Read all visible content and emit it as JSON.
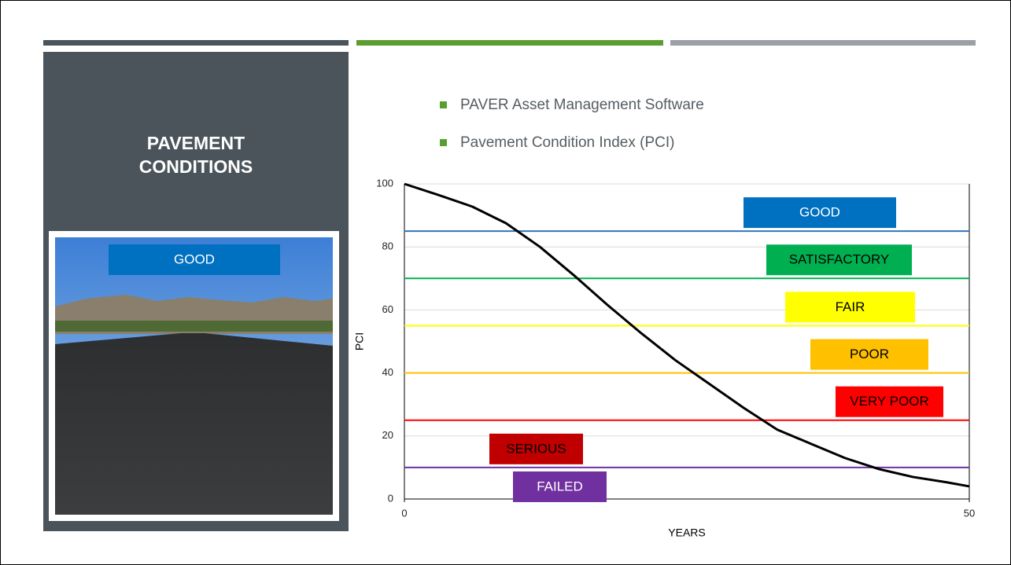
{
  "slide": {
    "title_lines": [
      "PAVEMENT",
      "CONDITIONS"
    ],
    "photo_label": "GOOD",
    "bullets": [
      "PAVER Asset Management Software",
      "Pavement Condition Index (PCI)"
    ]
  },
  "chart_data": {
    "type": "line",
    "xlabel": "YEARS",
    "ylabel": "PCI",
    "x": [
      0,
      3,
      6,
      9,
      12,
      15,
      18,
      21,
      24,
      27,
      30,
      33,
      36,
      39,
      42,
      45,
      48,
      50
    ],
    "series": [
      {
        "color": "#000000",
        "values": [
          100,
          96.5,
          92.8,
          87.5,
          80,
          71,
          61.5,
          52.5,
          44,
          36.5,
          29,
          22,
          17.5,
          13,
          9.5,
          7,
          5.3,
          4
        ]
      }
    ],
    "thresholds": [
      {
        "value": 85,
        "color": "#2e75b6"
      },
      {
        "value": 70,
        "color": "#00b050"
      },
      {
        "value": 55,
        "color": "#ffff00"
      },
      {
        "value": 40,
        "color": "#ffc000"
      },
      {
        "value": 25,
        "color": "#ff0000"
      },
      {
        "value": 10,
        "color": "#7030a0"
      }
    ],
    "bands": [
      {
        "name": "GOOD",
        "color": "#0070c0"
      },
      {
        "name": "SATISFACTORY",
        "color": "#00b050"
      },
      {
        "name": "FAIR",
        "color": "#ffff00"
      },
      {
        "name": "POOR",
        "color": "#ffc000"
      },
      {
        "name": "VERY POOR",
        "color": "#ff0000"
      },
      {
        "name": "SERIOUS",
        "color": "#c00000"
      },
      {
        "name": "FAILED",
        "color": "#7030a0"
      }
    ],
    "xlim": [
      0,
      50
    ],
    "xticks": [
      0,
      50
    ],
    "ylim": [
      0,
      100
    ],
    "yticks": [
      0,
      20,
      40,
      60,
      80,
      100
    ],
    "grid": true
  }
}
